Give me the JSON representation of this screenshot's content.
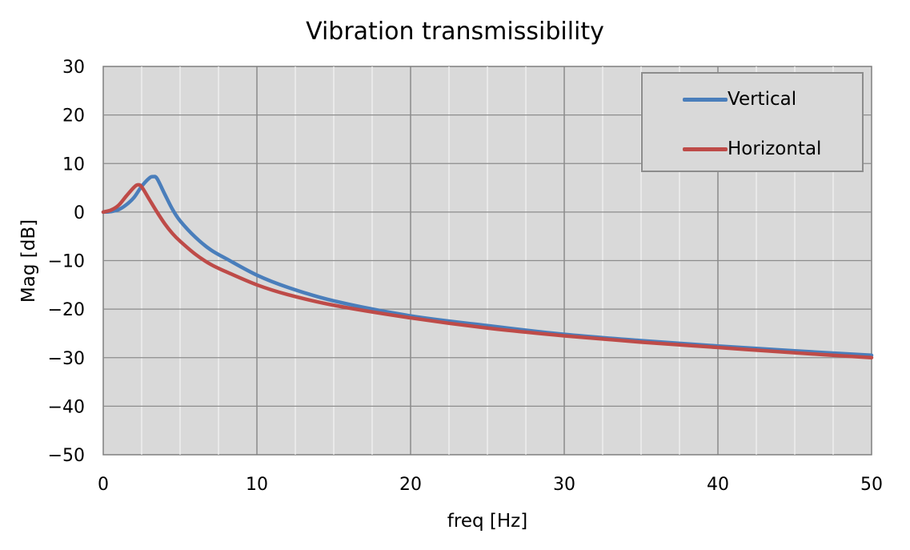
{
  "chart_data": {
    "type": "line",
    "title": "Vibration transmissibility",
    "xlabel": "freq [Hz]",
    "ylabel": "Mag [dB]",
    "xlim": [
      0,
      50
    ],
    "ylim": [
      -50,
      30
    ],
    "x_ticks": [
      "0",
      "10",
      "20",
      "30",
      "40",
      "50"
    ],
    "y_ticks": [
      "30",
      "20",
      "10",
      "0",
      "-10",
      "-20",
      "-30",
      "-40",
      "-50"
    ],
    "grid": true,
    "minor_grid": true,
    "legend": "top-right",
    "series": [
      {
        "name": "Vertical",
        "color": "#4a7ebb",
        "x": [
          0,
          0.5,
          1,
          1.5,
          2,
          2.5,
          3,
          3.25,
          3.5,
          4,
          4.5,
          5,
          6,
          7,
          8,
          10,
          12,
          15,
          20,
          25,
          30,
          35,
          40,
          45,
          50
        ],
        "y": [
          0,
          0.1,
          0.5,
          1.5,
          3.0,
          5.3,
          7.0,
          7.3,
          6.9,
          3.7,
          0.6,
          -1.8,
          -5.2,
          -7.8,
          -9.6,
          -13.0,
          -15.5,
          -18.3,
          -21.4,
          -23.4,
          -25.2,
          -26.5,
          -27.6,
          -28.6,
          -29.5
        ]
      },
      {
        "name": "Horizontal",
        "color": "#be4b48",
        "x": [
          0,
          0.5,
          1,
          1.5,
          2,
          2.25,
          2.5,
          3,
          3.5,
          4,
          4.5,
          5,
          6,
          7,
          8,
          10,
          12,
          15,
          20,
          25,
          30,
          35,
          40,
          45,
          50
        ],
        "y": [
          0,
          0.4,
          1.4,
          3.3,
          5.1,
          5.6,
          5.2,
          2.6,
          0,
          -2.4,
          -4.4,
          -6.0,
          -8.7,
          -10.8,
          -12.3,
          -15.0,
          -17.0,
          -19.2,
          -21.8,
          -23.9,
          -25.5,
          -26.8,
          -27.9,
          -29.0,
          -30.0
        ]
      }
    ]
  }
}
